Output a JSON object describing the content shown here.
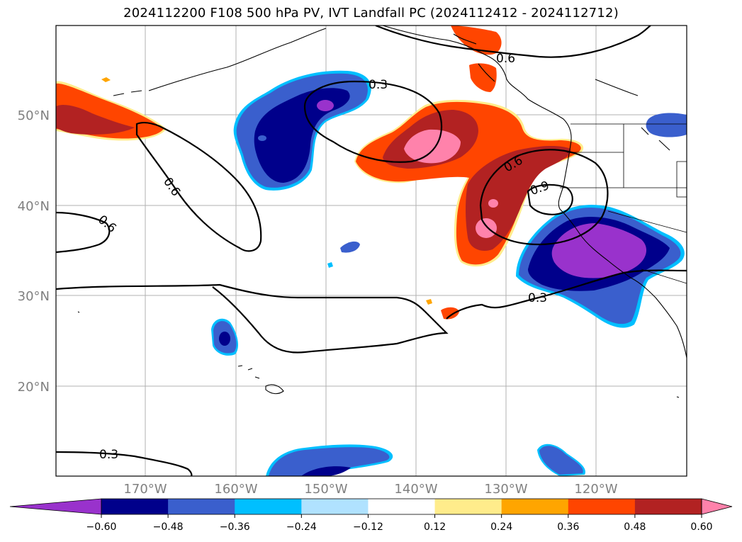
{
  "title": "2024112200 F108 500 hPa PV, IVT Landfall PC (2024112412 - 2024112712)",
  "map": {
    "lat_labels": [
      "50°N",
      "40°N",
      "30°N",
      "20°N"
    ],
    "lon_labels": [
      "170°W",
      "160°W",
      "150°W",
      "140°W",
      "130°W",
      "120°W"
    ]
  },
  "contour_labels": [
    "0.3",
    "0.6",
    "0.6",
    "0.6",
    "0.6",
    "0.9",
    "0.3",
    "0.3"
  ],
  "colorbar": {
    "levels": [
      -0.6,
      -0.48,
      -0.36,
      -0.24,
      -0.12,
      0.12,
      0.24,
      0.36,
      0.48,
      0.6
    ],
    "tick_labels": [
      "−0.60",
      "−0.48",
      "−0.36",
      "−0.24",
      "−0.12",
      "0.12",
      "0.24",
      "0.36",
      "0.48",
      "0.60"
    ],
    "colors": [
      "#9932cc",
      "#00008b",
      "#3a5fcd",
      "#00bfff",
      "#b0e2ff",
      "#ffffff",
      "#ffec8b",
      "#ffa500",
      "#ff4500",
      "#b22222",
      "#ff82ab"
    ]
  }
}
